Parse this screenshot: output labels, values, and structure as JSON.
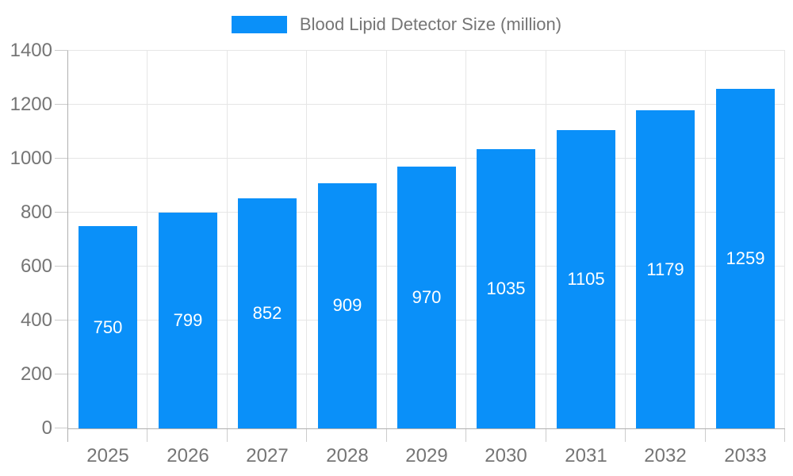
{
  "chart_data": {
    "type": "bar",
    "title": "Blood Lipid Detector Size (million)",
    "categories": [
      "2025",
      "2026",
      "2027",
      "2028",
      "2029",
      "2030",
      "2031",
      "2032",
      "2033"
    ],
    "values": [
      750,
      799,
      852,
      909,
      970,
      1035,
      1105,
      1179,
      1259
    ],
    "xlabel": "",
    "ylabel": "",
    "ylim": [
      0,
      1400
    ],
    "yticks": [
      0,
      200,
      400,
      600,
      800,
      1000,
      1200,
      1400
    ],
    "grid": true,
    "legend_position": "top-center",
    "value_labels": "inside-center",
    "colors": {
      "bar": "#0a90f9",
      "bar_label": "#ffffff",
      "grid": "#e6e6e6",
      "tick": "#cccccc",
      "axis": "#b0b0b0",
      "text": "#757575",
      "background": "#ffffff"
    }
  }
}
